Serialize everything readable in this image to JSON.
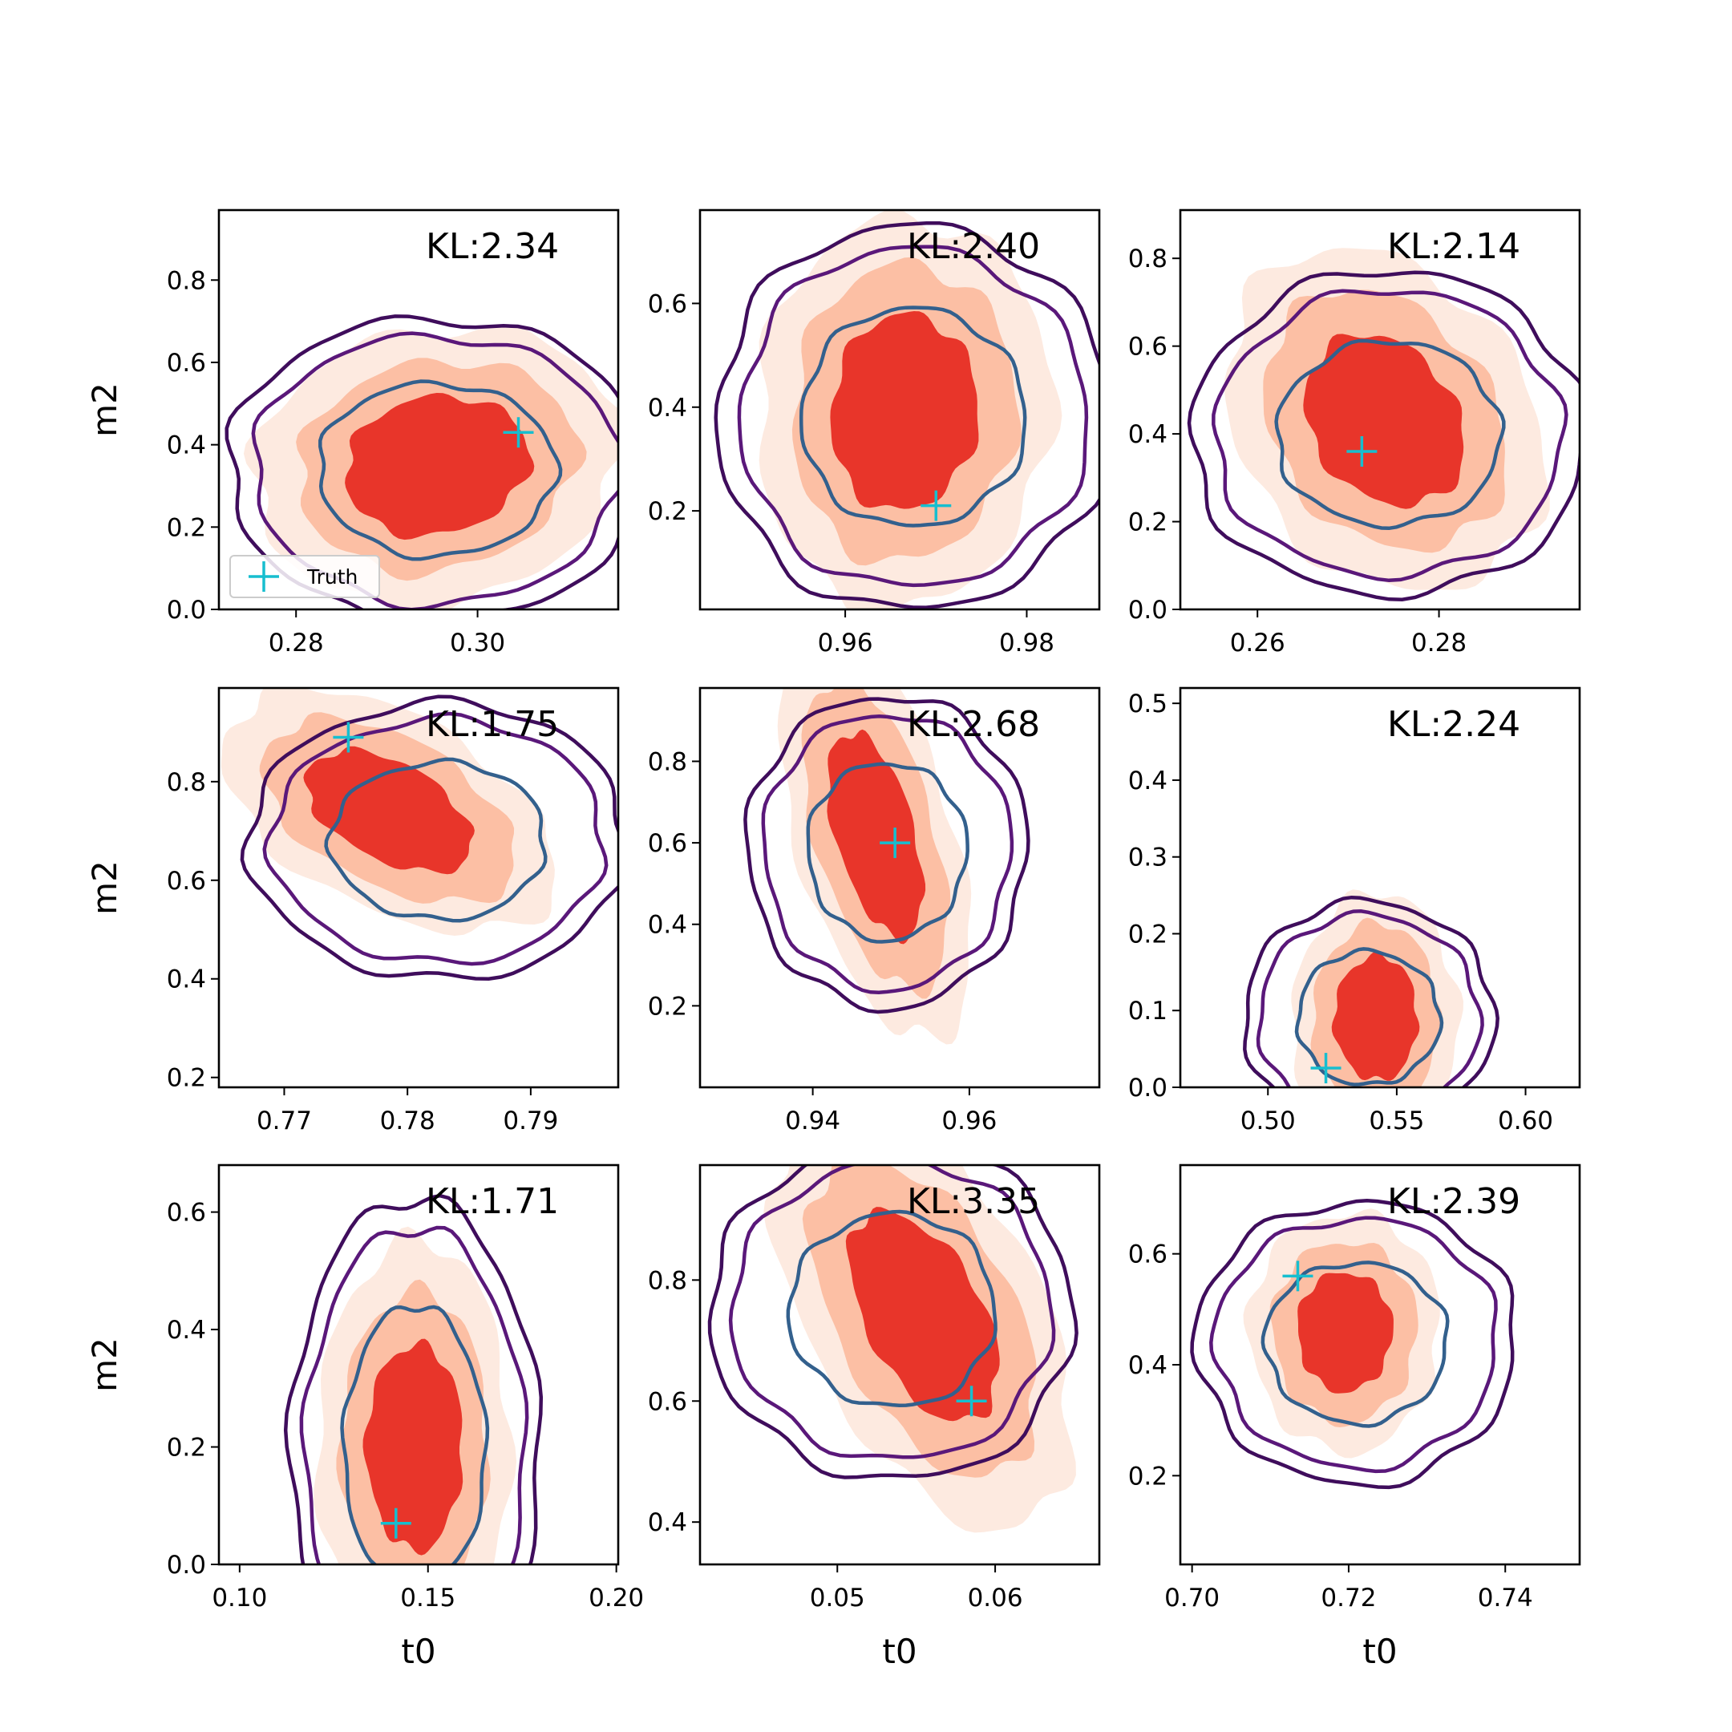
{
  "colors": {
    "filled_outer": "#fdeae0",
    "filled_mid": "#fcbfa4",
    "filled_inner": "#e8352a",
    "contour_outer": "#3f0d5c",
    "contour_mid": "#5a187a",
    "contour_inner": "#33608d",
    "truth_marker": "#17becf"
  },
  "legend": {
    "label": "Truth",
    "marker": "plus-marker"
  },
  "chart_data": [
    {
      "type": "contour",
      "panel": 1,
      "kl_label": "KL:2.34",
      "xlabel": "",
      "ylabel": "m2",
      "xlim": [
        0.2715,
        0.3155
      ],
      "ylim": [
        0.0,
        0.97
      ],
      "xticks": [
        "0.28",
        "0.30"
      ],
      "xtick_values": [
        0.28,
        0.3
      ],
      "yticks": [
        "0.0",
        "0.2",
        "0.4",
        "0.6",
        "0.8"
      ],
      "ytick_values": [
        0.0,
        0.2,
        0.4,
        0.6,
        0.8
      ],
      "filled_center": [
        0.2955,
        0.35
      ],
      "filled_spread": [
        0.0075,
        0.125
      ],
      "contour_center": [
        0.2955,
        0.34
      ],
      "contour_spread": [
        0.009,
        0.145
      ],
      "tilt": 0.12,
      "truth": [
        0.3045,
        0.43
      ]
    },
    {
      "type": "contour",
      "panel": 2,
      "kl_label": "KL:2.40",
      "xlabel": "",
      "ylabel": "",
      "xlim": [
        0.944,
        0.988
      ],
      "ylim": [
        0.01,
        0.78
      ],
      "xticks": [
        "0.96",
        "0.98"
      ],
      "xtick_values": [
        0.96,
        0.98
      ],
      "yticks": [
        "0.2",
        "0.4",
        "0.6"
      ],
      "ytick_values": [
        0.2,
        0.4,
        0.6
      ],
      "filled_center": [
        0.9665,
        0.39
      ],
      "filled_spread": [
        0.006,
        0.14
      ],
      "contour_center": [
        0.9675,
        0.38
      ],
      "contour_spread": [
        0.0085,
        0.145
      ],
      "tilt": 0.05,
      "truth": [
        0.97,
        0.21
      ]
    },
    {
      "type": "contour",
      "panel": 3,
      "kl_label": "KL:2.14",
      "xlabel": "",
      "ylabel": "",
      "xlim": [
        0.2515,
        0.2955
      ],
      "ylim": [
        0.0,
        0.91
      ],
      "xticks": [
        "0.26",
        "0.28"
      ],
      "xtick_values": [
        0.26,
        0.28
      ],
      "yticks": [
        "0.0",
        "0.2",
        "0.4",
        "0.6",
        "0.8"
      ],
      "ytick_values": [
        0.0,
        0.2,
        0.4,
        0.6,
        0.8
      ],
      "filled_center": [
        0.274,
        0.43
      ],
      "filled_spread": [
        0.0065,
        0.14
      ],
      "contour_center": [
        0.2745,
        0.4
      ],
      "contour_spread": [
        0.0085,
        0.145
      ],
      "tilt": -0.25,
      "truth": [
        0.2715,
        0.36
      ]
    },
    {
      "type": "contour",
      "panel": 4,
      "kl_label": "KL:1.75",
      "xlabel": "",
      "ylabel": "m2",
      "xlim": [
        0.7647,
        0.7971
      ],
      "ylim": [
        0.18,
        0.99
      ],
      "xticks": [
        "0.77",
        "0.78",
        "0.79"
      ],
      "xtick_values": [
        0.77,
        0.78,
        0.79
      ],
      "yticks": [
        "0.2",
        "0.4",
        "0.6",
        "0.8"
      ],
      "ytick_values": [
        0.2,
        0.4,
        0.6,
        0.8
      ],
      "filled_center": [
        0.7785,
        0.74
      ],
      "filled_spread": [
        0.005,
        0.08
      ],
      "contour_center": [
        0.7825,
        0.68
      ],
      "contour_spread": [
        0.006,
        0.11
      ],
      "tilt": -0.55,
      "truth": [
        0.7752,
        0.89
      ]
    },
    {
      "type": "contour",
      "panel": 5,
      "kl_label": "KL:2.68",
      "xlabel": "",
      "ylabel": "",
      "xlim": [
        0.9256,
        0.9766
      ],
      "ylim": [
        0.0,
        0.98
      ],
      "xticks": [
        "0.94",
        "0.96"
      ],
      "xtick_values": [
        0.94,
        0.96
      ],
      "yticks": [
        "0.2",
        "0.4",
        "0.6",
        "0.8"
      ],
      "ytick_values": [
        0.2,
        0.4,
        0.6,
        0.8
      ],
      "filled_center": [
        0.948,
        0.62
      ],
      "filled_spread": [
        0.0045,
        0.16
      ],
      "contour_center": [
        0.9495,
        0.58
      ],
      "contour_spread": [
        0.007,
        0.15
      ],
      "tilt": -0.6,
      "truth": [
        0.9505,
        0.6
      ]
    },
    {
      "type": "contour",
      "panel": 6,
      "kl_label": "KL:2.24",
      "xlabel": "",
      "ylabel": "",
      "xlim": [
        0.466,
        0.621
      ],
      "ylim": [
        0.0,
        0.52
      ],
      "xticks": [
        "0.50",
        "0.55",
        "0.60"
      ],
      "xtick_values": [
        0.5,
        0.55,
        0.6
      ],
      "yticks": [
        "0.0",
        "0.1",
        "0.2",
        "0.3",
        "0.4",
        "0.5"
      ],
      "ytick_values": [
        0.0,
        0.1,
        0.2,
        0.3,
        0.4,
        0.5
      ],
      "filled_center": [
        0.542,
        0.09
      ],
      "filled_spread": [
        0.012,
        0.06
      ],
      "contour_center": [
        0.539,
        0.09
      ],
      "contour_spread": [
        0.019,
        0.06
      ],
      "tilt": 0.0,
      "truth": [
        0.5225,
        0.025
      ]
    },
    {
      "type": "contour",
      "panel": 7,
      "kl_label": "KL:1.71",
      "xlabel": "t0",
      "ylabel": "m2",
      "xlim": [
        0.0945,
        0.2005
      ],
      "ylim": [
        0.0,
        0.68
      ],
      "xticks": [
        "0.10",
        "0.15",
        "0.20"
      ],
      "xtick_values": [
        0.1,
        0.15,
        0.2
      ],
      "yticks": [
        "0.0",
        "0.2",
        "0.4",
        "0.6"
      ],
      "ytick_values": [
        0.0,
        0.2,
        0.4,
        0.6
      ],
      "filled_center": [
        0.1465,
        0.2
      ],
      "filled_spread": [
        0.0095,
        0.13
      ],
      "contour_center": [
        0.1465,
        0.2
      ],
      "contour_spread": [
        0.013,
        0.165
      ],
      "tilt": 0.0,
      "truth": [
        0.1415,
        0.07
      ]
    },
    {
      "type": "contour",
      "panel": 8,
      "kl_label": "KL:3.35",
      "xlabel": "t0",
      "ylabel": "",
      "xlim": [
        0.0413,
        0.0666
      ],
      "ylim": [
        0.33,
        0.99
      ],
      "xticks": [
        "0.05",
        "0.06"
      ],
      "xtick_values": [
        0.05,
        0.06
      ],
      "yticks": [
        "0.4",
        "0.6",
        "0.8"
      ],
      "ytick_values": [
        0.4,
        0.6,
        0.8
      ],
      "filled_center": [
        0.0555,
        0.74
      ],
      "filled_spread": [
        0.0035,
        0.11
      ],
      "contour_center": [
        0.0535,
        0.75
      ],
      "contour_spread": [
        0.0045,
        0.11
      ],
      "tilt": -0.6,
      "truth": [
        0.0585,
        0.6
      ]
    },
    {
      "type": "contour",
      "panel": 9,
      "kl_label": "KL:2.39",
      "xlabel": "t0",
      "ylabel": "",
      "xlim": [
        0.6985,
        0.7495
      ],
      "ylim": [
        0.04,
        0.76
      ],
      "xticks": [
        "0.70",
        "0.72",
        "0.74"
      ],
      "xtick_values": [
        0.7,
        0.72,
        0.74
      ],
      "yticks": [
        "0.2",
        "0.4",
        "0.6"
      ],
      "ytick_values": [
        0.2,
        0.4,
        0.6
      ],
      "filled_center": [
        0.7195,
        0.46
      ],
      "filled_spread": [
        0.0045,
        0.08
      ],
      "contour_center": [
        0.721,
        0.44
      ],
      "contour_spread": [
        0.008,
        0.1
      ],
      "tilt": 0.0,
      "truth": [
        0.7135,
        0.56
      ]
    }
  ]
}
